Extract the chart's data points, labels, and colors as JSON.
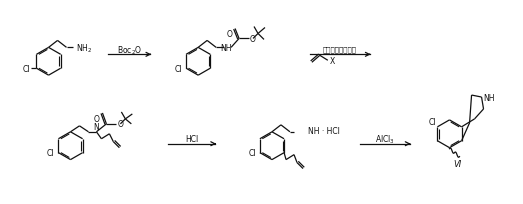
{
  "bg_color": "#ffffff",
  "line_color": "#111111",
  "figsize": [
    5.23,
    2.05
  ],
  "dpi": 100,
  "arrow1_label": "Boc$_2$O",
  "arrow2_label_top": "相转移嫁化剂，碑",
  "arrow3_label": "HCl",
  "arrow4_label": "AlCl$_3$",
  "label_vi": "VI"
}
